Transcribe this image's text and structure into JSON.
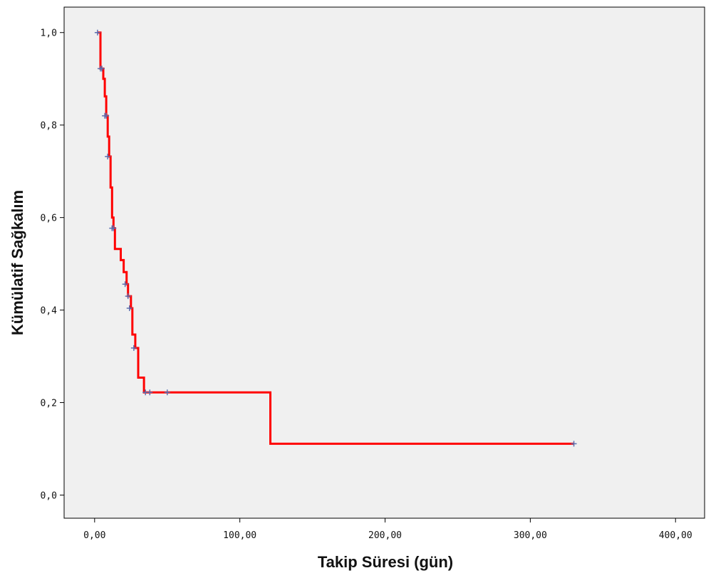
{
  "chart_data": {
    "type": "line",
    "subtype": "kaplan-meier-step",
    "title": "",
    "xlabel": "Takip Süresi (gün)",
    "ylabel": "Kümülatif Sağkalım",
    "xlim": [
      -21,
      420
    ],
    "ylim": [
      -0.05,
      1.055
    ],
    "xticks": [
      0,
      100,
      200,
      300,
      400
    ],
    "xtick_labels": [
      "0,00",
      "100,00",
      "200,00",
      "300,00",
      "400,00"
    ],
    "yticks": [
      0.0,
      0.2,
      0.4,
      0.6,
      0.8,
      1.0
    ],
    "ytick_labels": [
      "0,0",
      "0,2",
      "0,4",
      "0,6",
      "0,8",
      "1,0"
    ],
    "grid": false,
    "legend": "none",
    "background": "#f0f0f0",
    "line_color": "#ff0000",
    "censor_color": "#5b6fb0",
    "series": [
      {
        "steps": [
          {
            "x": 2,
            "y": 1.0
          },
          {
            "x": 4,
            "y": 0.922
          },
          {
            "x": 6,
            "y": 0.9
          },
          {
            "x": 7,
            "y": 0.862
          },
          {
            "x": 8,
            "y": 0.82
          },
          {
            "x": 9,
            "y": 0.775
          },
          {
            "x": 10,
            "y": 0.732
          },
          {
            "x": 11,
            "y": 0.665
          },
          {
            "x": 12,
            "y": 0.6
          },
          {
            "x": 13,
            "y": 0.577
          },
          {
            "x": 14,
            "y": 0.532
          },
          {
            "x": 18,
            "y": 0.508
          },
          {
            "x": 20,
            "y": 0.482
          },
          {
            "x": 22,
            "y": 0.456
          },
          {
            "x": 23,
            "y": 0.43
          },
          {
            "x": 25,
            "y": 0.404
          },
          {
            "x": 26,
            "y": 0.347
          },
          {
            "x": 28,
            "y": 0.318
          },
          {
            "x": 30,
            "y": 0.254
          },
          {
            "x": 34,
            "y": 0.222
          },
          {
            "x": 121,
            "y": 0.111
          },
          {
            "x": 330,
            "y": 0.111
          }
        ],
        "censored": [
          {
            "x": 2,
            "y": 1.0
          },
          {
            "x": 4,
            "y": 0.922
          },
          {
            "x": 5,
            "y": 0.922
          },
          {
            "x": 7,
            "y": 0.82
          },
          {
            "x": 8,
            "y": 0.82
          },
          {
            "x": 9,
            "y": 0.732
          },
          {
            "x": 12,
            "y": 0.577
          },
          {
            "x": 13,
            "y": 0.577
          },
          {
            "x": 21,
            "y": 0.456
          },
          {
            "x": 23,
            "y": 0.43
          },
          {
            "x": 24,
            "y": 0.404
          },
          {
            "x": 27,
            "y": 0.318
          },
          {
            "x": 35,
            "y": 0.222
          },
          {
            "x": 38,
            "y": 0.222
          },
          {
            "x": 50,
            "y": 0.222
          },
          {
            "x": 330,
            "y": 0.111
          }
        ]
      }
    ]
  }
}
